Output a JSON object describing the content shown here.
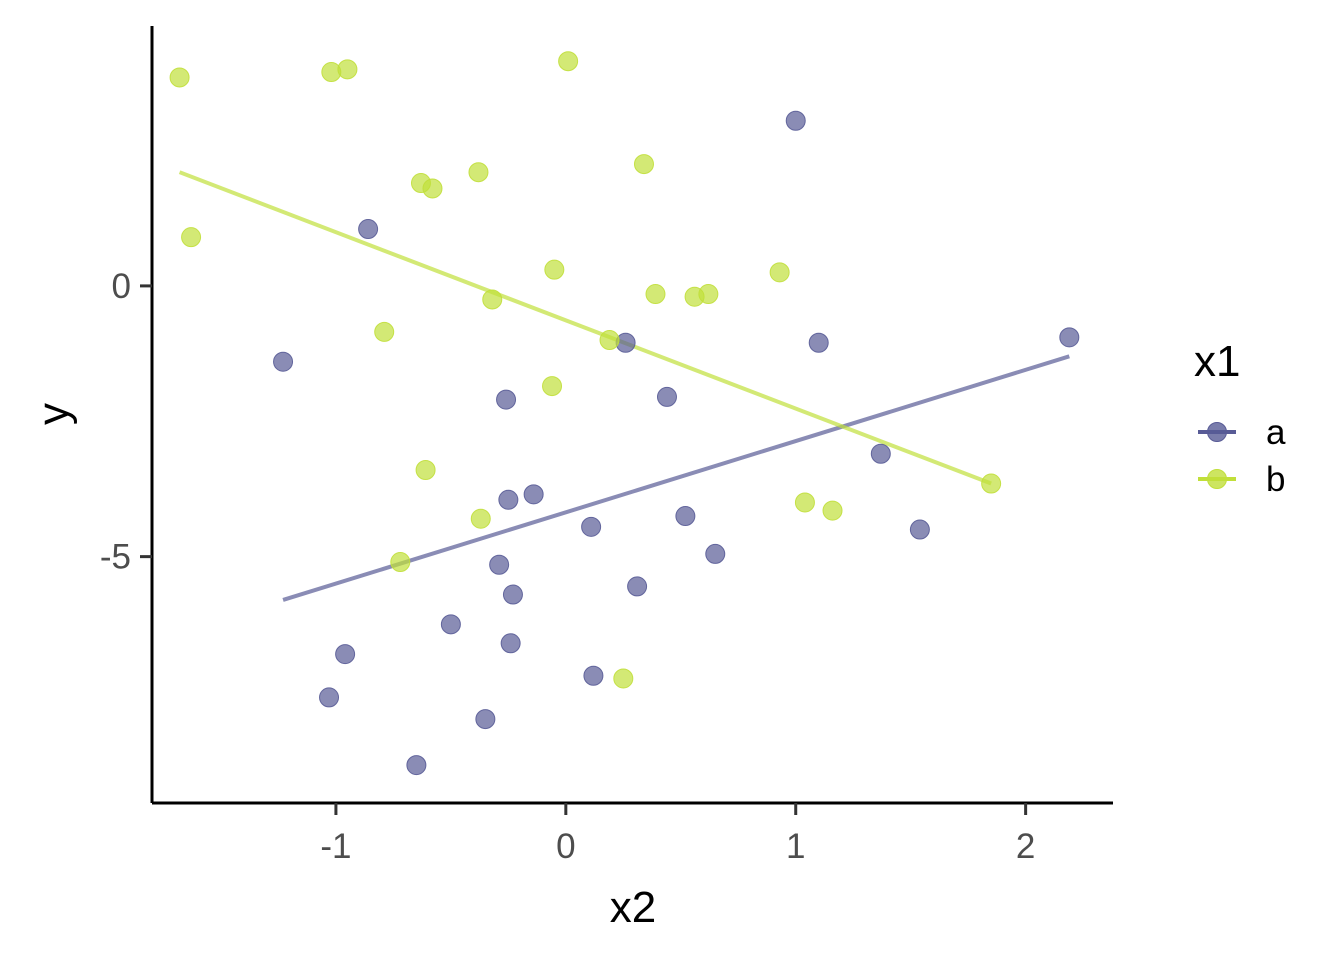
{
  "chart_data": {
    "type": "scatter",
    "xlabel": "x2",
    "ylabel": "y",
    "xlim": [
      -1.8,
      2.38
    ],
    "ylim": [
      -9.55,
      4.8
    ],
    "x_ticks": [
      -1,
      0,
      1,
      2
    ],
    "y_ticks": [
      -5,
      0
    ],
    "x_tick_labels": [
      "-1",
      "0",
      "1",
      "2"
    ],
    "y_tick_labels": [
      "-5",
      "0"
    ],
    "grid": false,
    "legend": {
      "title": "x1",
      "placement": "right"
    },
    "series": [
      {
        "name": "a",
        "color": "#585b96",
        "points": [
          {
            "x": 1.0,
            "y": 3.05
          },
          {
            "x": -0.86,
            "y": 1.05
          },
          {
            "x": 2.19,
            "y": -0.95
          },
          {
            "x": 0.26,
            "y": -1.05
          },
          {
            "x": 1.1,
            "y": -1.05
          },
          {
            "x": -1.23,
            "y": -1.4
          },
          {
            "x": -0.26,
            "y": -2.1
          },
          {
            "x": 0.44,
            "y": -2.05
          },
          {
            "x": 1.37,
            "y": -3.1
          },
          {
            "x": -0.25,
            "y": -3.95
          },
          {
            "x": -0.14,
            "y": -3.85
          },
          {
            "x": 0.11,
            "y": -4.45
          },
          {
            "x": 0.52,
            "y": -4.25
          },
          {
            "x": 1.54,
            "y": -4.5
          },
          {
            "x": 0.65,
            "y": -4.95
          },
          {
            "x": -0.29,
            "y": -5.15
          },
          {
            "x": -0.23,
            "y": -5.7
          },
          {
            "x": 0.31,
            "y": -5.55
          },
          {
            "x": -0.5,
            "y": -6.25
          },
          {
            "x": -0.24,
            "y": -6.6
          },
          {
            "x": -0.96,
            "y": -6.8
          },
          {
            "x": 0.12,
            "y": -7.2
          },
          {
            "x": -1.03,
            "y": -7.6
          },
          {
            "x": -0.35,
            "y": -8.0
          },
          {
            "x": -0.65,
            "y": -8.85
          }
        ],
        "fit": {
          "x": [
            -1.23,
            2.19
          ],
          "y": [
            -5.8,
            -1.3
          ]
        }
      },
      {
        "name": "b",
        "color": "#c1df3a",
        "points": [
          {
            "x": -1.68,
            "y": 3.85
          },
          {
            "x": -1.02,
            "y": 3.95
          },
          {
            "x": -0.95,
            "y": 4.0
          },
          {
            "x": 0.01,
            "y": 4.15
          },
          {
            "x": 0.34,
            "y": 2.25
          },
          {
            "x": -0.38,
            "y": 2.1
          },
          {
            "x": -0.63,
            "y": 1.9
          },
          {
            "x": -0.58,
            "y": 1.8
          },
          {
            "x": -1.63,
            "y": 0.9
          },
          {
            "x": -0.05,
            "y": 0.3
          },
          {
            "x": 0.93,
            "y": 0.25
          },
          {
            "x": -0.32,
            "y": -0.25
          },
          {
            "x": 0.39,
            "y": -0.15
          },
          {
            "x": 0.56,
            "y": -0.2
          },
          {
            "x": 0.62,
            "y": -0.15
          },
          {
            "x": -0.79,
            "y": -0.85
          },
          {
            "x": 0.19,
            "y": -1.0
          },
          {
            "x": -0.06,
            "y": -1.85
          },
          {
            "x": -0.61,
            "y": -3.4
          },
          {
            "x": 1.04,
            "y": -4.0
          },
          {
            "x": 1.16,
            "y": -4.15
          },
          {
            "x": -0.37,
            "y": -4.3
          },
          {
            "x": 1.85,
            "y": -3.65
          },
          {
            "x": -0.72,
            "y": -5.1
          },
          {
            "x": 0.25,
            "y": -7.25
          }
        ],
        "fit": {
          "x": [
            -1.68,
            1.85
          ],
          "y": [
            2.1,
            -3.65
          ]
        }
      }
    ]
  }
}
